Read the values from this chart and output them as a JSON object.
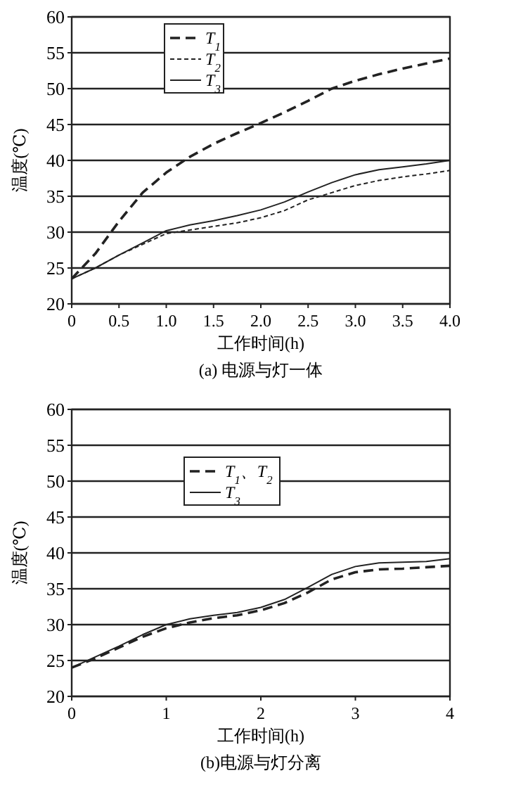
{
  "chart_data": [
    {
      "type": "line",
      "title": "(a) 电源与灯一体",
      "xlabel": "工作时间(h)",
      "ylabel": "温度(℃)",
      "xlim": [
        0,
        4
      ],
      "ylim": [
        20,
        60
      ],
      "xticks": [
        {
          "value": 0,
          "label": "0"
        },
        {
          "value": 0.5,
          "label": "0.5"
        },
        {
          "value": 1,
          "label": "1.0"
        },
        {
          "value": 1.5,
          "label": "1.5"
        },
        {
          "value": 2,
          "label": "2.0"
        },
        {
          "value": 2.5,
          "label": "2.5"
        },
        {
          "value": 3,
          "label": "3.0"
        },
        {
          "value": 3.5,
          "label": "3.5"
        },
        {
          "value": 4,
          "label": "4.0"
        }
      ],
      "yticks": [
        20,
        25,
        30,
        35,
        40,
        45,
        50,
        55,
        60
      ],
      "grid": "y",
      "legend": "top left",
      "x": [
        0,
        0.25,
        0.5,
        0.75,
        1,
        1.25,
        1.5,
        1.75,
        2,
        2.25,
        2.5,
        2.75,
        3,
        3.25,
        3.5,
        3.75,
        4
      ],
      "series": [
        {
          "name": "T$_{1}$",
          "color": "#222222",
          "line_style": "dashed",
          "values": [
            23.5,
            27,
            31.5,
            35.5,
            38.3,
            40.5,
            42.3,
            43.8,
            45.2,
            46.7,
            48.3,
            50,
            51.1,
            52,
            52.8,
            53.5,
            54.2
          ]
        },
        {
          "name": "T$_{2}$",
          "color": "#222222",
          "line_style": "dotted",
          "values": [
            23.5,
            25,
            26.8,
            28.3,
            29.8,
            30.3,
            30.8,
            31.3,
            32,
            33,
            34.5,
            35.5,
            36.5,
            37.2,
            37.7,
            38.1,
            38.6
          ]
        },
        {
          "name": "T$_{3}$",
          "color": "#222222",
          "line_style": "solid",
          "values": [
            23.5,
            25,
            26.8,
            28.5,
            30.2,
            31,
            31.6,
            32.3,
            33.1,
            34.2,
            35.6,
            36.9,
            38,
            38.7,
            39.1,
            39.5,
            40
          ]
        }
      ]
    },
    {
      "type": "line",
      "title": "(b)电源与灯分离",
      "xlabel": "工作时间(h)",
      "ylabel": "温度(℃)",
      "xlim": [
        0,
        4
      ],
      "ylim": [
        20,
        60
      ],
      "xticks": [
        0,
        1,
        2,
        3,
        4
      ],
      "yticks": [
        20,
        25,
        30,
        35,
        40,
        45,
        50,
        55,
        60
      ],
      "grid": "y",
      "legend": "top",
      "x": [
        0,
        0.25,
        0.5,
        0.75,
        1,
        1.25,
        1.5,
        1.75,
        2,
        2.25,
        2.5,
        2.75,
        3,
        3.25,
        3.5,
        3.75,
        4
      ],
      "series": [
        {
          "name": "T$_{1}$、T$_{2}$",
          "color": "#222222",
          "line_style": "dashed",
          "values": [
            24,
            25.3,
            26.8,
            28.3,
            29.5,
            30.3,
            30.9,
            31.3,
            32,
            33,
            34.5,
            36.3,
            37.3,
            37.7,
            37.8,
            38,
            38.2
          ]
        },
        {
          "name": "T$_{3}$",
          "color": "#222222",
          "line_style": "solid",
          "values": [
            24,
            25.5,
            27,
            28.6,
            30,
            30.8,
            31.3,
            31.7,
            32.4,
            33.5,
            35.2,
            37,
            38.1,
            38.6,
            38.7,
            38.8,
            39.2
          ]
        }
      ]
    }
  ]
}
